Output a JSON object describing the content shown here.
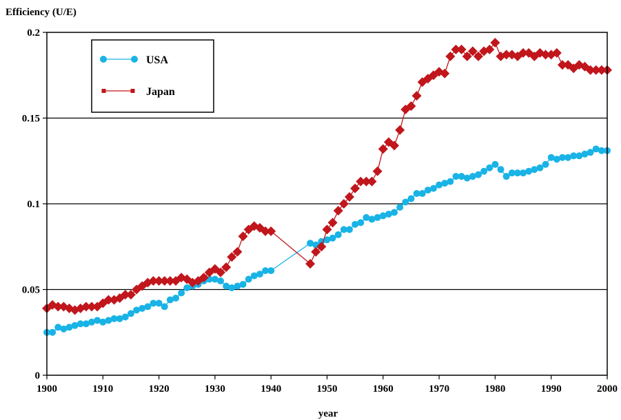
{
  "chart_data": {
    "type": "line",
    "title": "",
    "ylabel": "Efficiency (U/E)",
    "xlabel": "year",
    "xlim": [
      1900,
      2000
    ],
    "ylim": [
      0,
      0.2
    ],
    "x_ticks": [
      1900,
      1910,
      1920,
      1930,
      1940,
      1950,
      1960,
      1970,
      1980,
      1990,
      2000
    ],
    "x_tick_labels": [
      "1900",
      "1910",
      "1920",
      "1930",
      "1940",
      "1950",
      "1960",
      "1970",
      "1980",
      "1990",
      "2000"
    ],
    "y_ticks": [
      0,
      0.05,
      0.1,
      0.15,
      0.2
    ],
    "y_tick_labels": [
      "0",
      "0.05",
      "0.1",
      "0.15",
      "0.2"
    ],
    "grid": "horizontal",
    "legend_position": "top-left",
    "series": [
      {
        "name": "USA",
        "color": "#19b3e6",
        "marker": "circle",
        "points": [
          [
            1900,
            0.025
          ],
          [
            1901,
            0.025
          ],
          [
            1902,
            0.028
          ],
          [
            1903,
            0.027
          ],
          [
            1904,
            0.028
          ],
          [
            1905,
            0.029
          ],
          [
            1906,
            0.03
          ],
          [
            1907,
            0.03
          ],
          [
            1908,
            0.031
          ],
          [
            1909,
            0.032
          ],
          [
            1910,
            0.031
          ],
          [
            1911,
            0.032
          ],
          [
            1912,
            0.033
          ],
          [
            1913,
            0.033
          ],
          [
            1914,
            0.034
          ],
          [
            1915,
            0.036
          ],
          [
            1916,
            0.038
          ],
          [
            1917,
            0.039
          ],
          [
            1918,
            0.04
          ],
          [
            1919,
            0.042
          ],
          [
            1920,
            0.042
          ],
          [
            1921,
            0.04
          ],
          [
            1922,
            0.044
          ],
          [
            1923,
            0.045
          ],
          [
            1924,
            0.048
          ],
          [
            1925,
            0.051
          ],
          [
            1926,
            0.052
          ],
          [
            1927,
            0.053
          ],
          [
            1928,
            0.055
          ],
          [
            1929,
            0.056
          ],
          [
            1930,
            0.056
          ],
          [
            1931,
            0.055
          ],
          [
            1932,
            0.052
          ],
          [
            1933,
            0.051
          ],
          [
            1934,
            0.052
          ],
          [
            1935,
            0.053
          ],
          [
            1936,
            0.056
          ],
          [
            1937,
            0.058
          ],
          [
            1938,
            0.059
          ],
          [
            1939,
            0.061
          ],
          [
            1940,
            0.061
          ],
          [
            1947,
            0.077
          ],
          [
            1948,
            0.076
          ],
          [
            1949,
            0.078
          ],
          [
            1950,
            0.079
          ],
          [
            1951,
            0.08
          ],
          [
            1952,
            0.082
          ],
          [
            1953,
            0.085
          ],
          [
            1954,
            0.085
          ],
          [
            1955,
            0.088
          ],
          [
            1956,
            0.089
          ],
          [
            1957,
            0.092
          ],
          [
            1958,
            0.091
          ],
          [
            1959,
            0.092
          ],
          [
            1960,
            0.093
          ],
          [
            1961,
            0.094
          ],
          [
            1962,
            0.095
          ],
          [
            1963,
            0.098
          ],
          [
            1964,
            0.101
          ],
          [
            1965,
            0.103
          ],
          [
            1966,
            0.106
          ],
          [
            1967,
            0.106
          ],
          [
            1968,
            0.108
          ],
          [
            1969,
            0.109
          ],
          [
            1970,
            0.111
          ],
          [
            1971,
            0.112
          ],
          [
            1972,
            0.113
          ],
          [
            1973,
            0.116
          ],
          [
            1974,
            0.116
          ],
          [
            1975,
            0.115
          ],
          [
            1976,
            0.116
          ],
          [
            1977,
            0.117
          ],
          [
            1978,
            0.119
          ],
          [
            1979,
            0.121
          ],
          [
            1980,
            0.123
          ],
          [
            1981,
            0.12
          ],
          [
            1982,
            0.116
          ],
          [
            1983,
            0.118
          ],
          [
            1984,
            0.118
          ],
          [
            1985,
            0.118
          ],
          [
            1986,
            0.119
          ],
          [
            1987,
            0.12
          ],
          [
            1988,
            0.121
          ],
          [
            1989,
            0.123
          ],
          [
            1990,
            0.127
          ],
          [
            1991,
            0.126
          ],
          [
            1992,
            0.127
          ],
          [
            1993,
            0.127
          ],
          [
            1994,
            0.128
          ],
          [
            1995,
            0.128
          ],
          [
            1996,
            0.129
          ],
          [
            1997,
            0.13
          ],
          [
            1998,
            0.132
          ],
          [
            1999,
            0.131
          ],
          [
            2000,
            0.131
          ]
        ]
      },
      {
        "name": "Japan",
        "color": "#c0161c",
        "marker": "diamond",
        "points": [
          [
            1900,
            0.039
          ],
          [
            1901,
            0.041
          ],
          [
            1902,
            0.04
          ],
          [
            1903,
            0.04
          ],
          [
            1904,
            0.039
          ],
          [
            1905,
            0.038
          ],
          [
            1906,
            0.039
          ],
          [
            1907,
            0.04
          ],
          [
            1908,
            0.04
          ],
          [
            1909,
            0.04
          ],
          [
            1910,
            0.042
          ],
          [
            1911,
            0.044
          ],
          [
            1912,
            0.044
          ],
          [
            1913,
            0.045
          ],
          [
            1914,
            0.047
          ],
          [
            1915,
            0.047
          ],
          [
            1916,
            0.05
          ],
          [
            1917,
            0.052
          ],
          [
            1918,
            0.054
          ],
          [
            1919,
            0.055
          ],
          [
            1920,
            0.055
          ],
          [
            1921,
            0.055
          ],
          [
            1922,
            0.055
          ],
          [
            1923,
            0.055
          ],
          [
            1924,
            0.057
          ],
          [
            1925,
            0.056
          ],
          [
            1926,
            0.054
          ],
          [
            1927,
            0.055
          ],
          [
            1928,
            0.057
          ],
          [
            1929,
            0.06
          ],
          [
            1930,
            0.062
          ],
          [
            1931,
            0.06
          ],
          [
            1932,
            0.063
          ],
          [
            1933,
            0.069
          ],
          [
            1934,
            0.072
          ],
          [
            1935,
            0.081
          ],
          [
            1936,
            0.085
          ],
          [
            1937,
            0.087
          ],
          [
            1938,
            0.086
          ],
          [
            1939,
            0.084
          ],
          [
            1940,
            0.084
          ],
          [
            1947,
            0.065
          ],
          [
            1948,
            0.072
          ],
          [
            1949,
            0.075
          ],
          [
            1950,
            0.085
          ],
          [
            1951,
            0.089
          ],
          [
            1952,
            0.096
          ],
          [
            1953,
            0.1
          ],
          [
            1954,
            0.104
          ],
          [
            1955,
            0.109
          ],
          [
            1956,
            0.113
          ],
          [
            1957,
            0.113
          ],
          [
            1958,
            0.113
          ],
          [
            1959,
            0.119
          ],
          [
            1960,
            0.132
          ],
          [
            1961,
            0.136
          ],
          [
            1962,
            0.134
          ],
          [
            1963,
            0.143
          ],
          [
            1964,
            0.155
          ],
          [
            1965,
            0.157
          ],
          [
            1966,
            0.163
          ],
          [
            1967,
            0.171
          ],
          [
            1968,
            0.173
          ],
          [
            1969,
            0.175
          ],
          [
            1970,
            0.177
          ],
          [
            1971,
            0.176
          ],
          [
            1972,
            0.186
          ],
          [
            1973,
            0.19
          ],
          [
            1974,
            0.19
          ],
          [
            1975,
            0.186
          ],
          [
            1976,
            0.189
          ],
          [
            1977,
            0.186
          ],
          [
            1978,
            0.189
          ],
          [
            1979,
            0.19
          ],
          [
            1980,
            0.194
          ],
          [
            1981,
            0.186
          ],
          [
            1982,
            0.187
          ],
          [
            1983,
            0.187
          ],
          [
            1984,
            0.186
          ],
          [
            1985,
            0.188
          ],
          [
            1986,
            0.188
          ],
          [
            1987,
            0.186
          ],
          [
            1988,
            0.188
          ],
          [
            1989,
            0.187
          ],
          [
            1990,
            0.187
          ],
          [
            1991,
            0.188
          ],
          [
            1992,
            0.181
          ],
          [
            1993,
            0.181
          ],
          [
            1994,
            0.179
          ],
          [
            1995,
            0.181
          ],
          [
            1996,
            0.18
          ],
          [
            1997,
            0.178
          ],
          [
            1998,
            0.178
          ],
          [
            1999,
            0.178
          ],
          [
            2000,
            0.178
          ]
        ]
      }
    ]
  }
}
